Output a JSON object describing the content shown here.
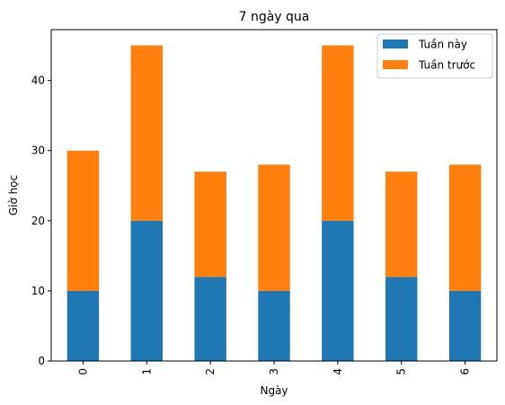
{
  "chart_data": {
    "type": "bar",
    "stacked": true,
    "title": "7 ngày qua",
    "xlabel": "Ngày",
    "ylabel": "Giờ học",
    "categories": [
      "0",
      "1",
      "2",
      "3",
      "4",
      "5",
      "6"
    ],
    "series": [
      {
        "name": "Tuần này",
        "color": "#1f77b4",
        "values": [
          10,
          20,
          12,
          10,
          20,
          12,
          10
        ]
      },
      {
        "name": "Tuần trước",
        "color": "#ff7f0e",
        "values": [
          20,
          25,
          15,
          18,
          25,
          15,
          18
        ]
      }
    ],
    "ylim": [
      0,
      47.25
    ],
    "yticks": [
      "0",
      "10",
      "20",
      "30",
      "40"
    ],
    "legend_position": "top-right",
    "grid": false
  }
}
